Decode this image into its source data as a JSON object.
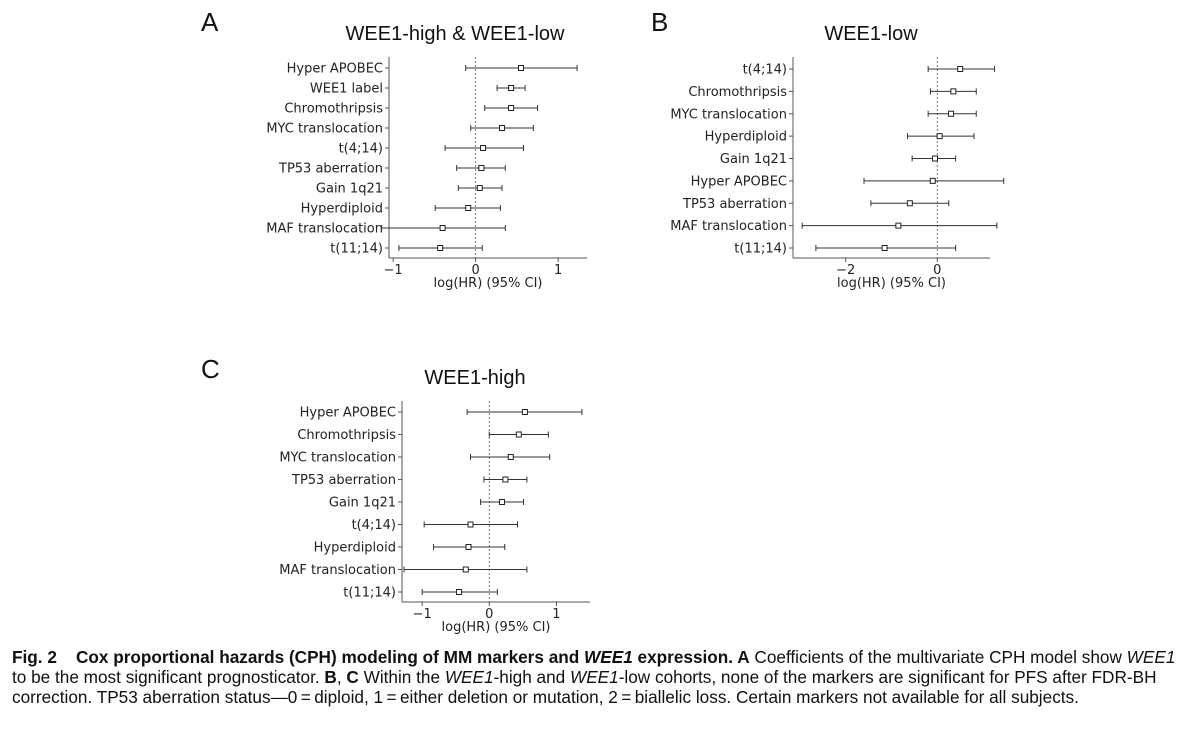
{
  "chart_data": [
    {
      "panel_label": "A",
      "type": "forest",
      "title": "WEE1-high & WEE1-low",
      "xlabel": "log(HR) (95% CI)",
      "xlim": [
        -1.05,
        1.35
      ],
      "xticks": [
        -1,
        0,
        1
      ],
      "xtick_labels": [
        "−1",
        "0",
        "1"
      ],
      "rows": [
        {
          "label": "Hyper APOBEC",
          "coef": 0.55,
          "lo": -0.12,
          "hi": 1.23
        },
        {
          "label": "WEE1 label",
          "coef": 0.43,
          "lo": 0.26,
          "hi": 0.6
        },
        {
          "label": "Chromothripsis",
          "coef": 0.43,
          "lo": 0.11,
          "hi": 0.75
        },
        {
          "label": "MYC translocation",
          "coef": 0.32,
          "lo": -0.06,
          "hi": 0.7
        },
        {
          "label": "t(4;14)",
          "coef": 0.09,
          "lo": -0.37,
          "hi": 0.58
        },
        {
          "label": "TP53 aberration",
          "coef": 0.07,
          "lo": -0.23,
          "hi": 0.36
        },
        {
          "label": "Gain 1q21",
          "coef": 0.05,
          "lo": -0.21,
          "hi": 0.32
        },
        {
          "label": "Hyperdiploid",
          "coef": -0.09,
          "lo": -0.49,
          "hi": 0.3
        },
        {
          "label": "MAF translocation",
          "coef": -0.4,
          "lo": -1.14,
          "hi": 0.36
        },
        {
          "label": "t(11;14)",
          "coef": -0.43,
          "lo": -0.93,
          "hi": 0.08
        }
      ]
    },
    {
      "panel_label": "B",
      "type": "forest",
      "title": "WEE1-low",
      "xlabel": "log(HR) (95% CI)",
      "xlim": [
        -3.15,
        1.15
      ],
      "xticks": [
        -2,
        0
      ],
      "xtick_labels": [
        "−2",
        "0"
      ],
      "rows": [
        {
          "label": "t(4;14)",
          "coef": 0.5,
          "lo": -0.2,
          "hi": 1.25
        },
        {
          "label": "Chromothripsis",
          "coef": 0.35,
          "lo": -0.15,
          "hi": 0.85
        },
        {
          "label": "MYC translocation",
          "coef": 0.3,
          "lo": -0.2,
          "hi": 0.85
        },
        {
          "label": "Hyperdiploid",
          "coef": 0.05,
          "lo": -0.65,
          "hi": 0.8
        },
        {
          "label": "Gain 1q21",
          "coef": -0.05,
          "lo": -0.55,
          "hi": 0.4
        },
        {
          "label": "Hyper APOBEC",
          "coef": -0.1,
          "lo": -1.6,
          "hi": 1.45
        },
        {
          "label": "TP53 aberration",
          "coef": -0.6,
          "lo": -1.45,
          "hi": 0.25
        },
        {
          "label": "MAF translocation",
          "coef": -0.85,
          "lo": -2.95,
          "hi": 1.3
        },
        {
          "label": "t(11;14)",
          "coef": -1.15,
          "lo": -2.65,
          "hi": 0.4
        }
      ]
    },
    {
      "panel_label": "C",
      "type": "forest",
      "title": "WEE1-high",
      "xlabel": "log(HR) (95% CI)",
      "xlim": [
        -1.3,
        1.5
      ],
      "xticks": [
        -1,
        0,
        1
      ],
      "xtick_labels": [
        "−1",
        "0",
        "1"
      ],
      "rows": [
        {
          "label": "Hyper APOBEC",
          "coef": 0.53,
          "lo": -0.33,
          "hi": 1.38
        },
        {
          "label": "Chromothripsis",
          "coef": 0.44,
          "lo": 0.0,
          "hi": 0.88
        },
        {
          "label": "MYC translocation",
          "coef": 0.32,
          "lo": -0.28,
          "hi": 0.9
        },
        {
          "label": "TP53 aberration",
          "coef": 0.24,
          "lo": -0.08,
          "hi": 0.56
        },
        {
          "label": "Gain 1q21",
          "coef": 0.19,
          "lo": -0.13,
          "hi": 0.51
        },
        {
          "label": "t(4;14)",
          "coef": -0.28,
          "lo": -0.97,
          "hi": 0.42
        },
        {
          "label": "Hyperdiploid",
          "coef": -0.31,
          "lo": -0.83,
          "hi": 0.23
        },
        {
          "label": "MAF translocation",
          "coef": -0.35,
          "lo": -1.27,
          "hi": 0.56
        },
        {
          "label": "t(11;14)",
          "coef": -0.45,
          "lo": -1.0,
          "hi": 0.12
        }
      ]
    }
  ],
  "caption": {
    "figure_label": "Fig. 2",
    "heading_pre": "Cox proportional hazards (CPH) modeling of MM markers and ",
    "heading_gene": "WEE1",
    "heading_post": " expression.",
    "panel_a": "A",
    "text_a": " Coefficients of the multivariate CPH model show ",
    "gene_1": "WEE1",
    "text_a2": " to be the most significant prognosticator. ",
    "panel_b": "B",
    "sep": ", ",
    "panel_c": "C",
    "text_bc1": " Within the ",
    "gene_2": "WEE1",
    "text_bc2": "-high and ",
    "gene_3": "WEE1",
    "text_bc3": "-low cohorts, none of the markers are significant for PFS after FDR-BH correction. TP53 aberration status—0 = diploid, 1 = either deletion or mutation, 2 = biallelic loss. Certain markers not available for all subjects."
  }
}
